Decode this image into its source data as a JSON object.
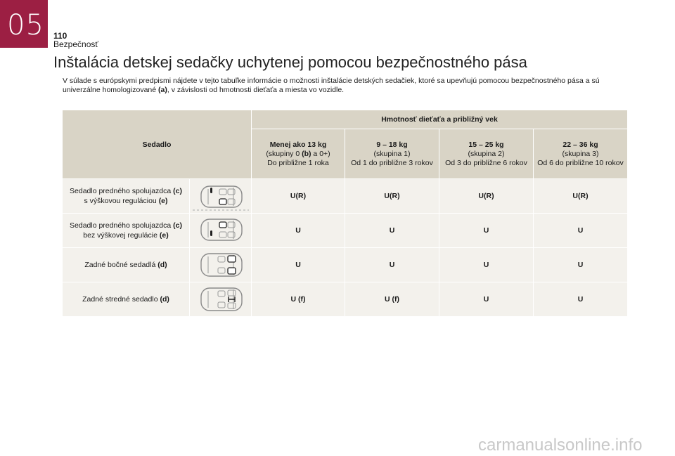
{
  "header": {
    "chapter_number": "05",
    "page_number": "110",
    "section": "Bezpečnosť",
    "chapter_color": "#9c1f43"
  },
  "title": "Inštalácia detskej sedačky uchytenej pomocou bezpečnostného pása",
  "intro": {
    "part1": "V súlade s európskymi predpismi nájdete v tejto tabuľke informácie o možnosti inštalácie detských sedačiek, ktoré sa upevňujú pomocou bezpečnostného pása a sú univerzálne homologizované ",
    "part1_bold": "(a)",
    "part2": ", v závislosti od hmotnosti dieťaťa a miesta vo vozidle."
  },
  "table": {
    "seat_header": "Sedadlo",
    "weight_header": "Hmotnosť dieťaťa a približný vek",
    "columns": [
      {
        "weight": "Menej ako 13 kg",
        "group_pre": "(skupiny 0 ",
        "group_bold": "(b)",
        "group_post": " a 0+)",
        "age": "Do približne 1 roka"
      },
      {
        "weight": "9 – 18 kg",
        "group_pre": "(skupina 1)",
        "group_bold": "",
        "group_post": "",
        "age": "Od 1 do približne 3 rokov"
      },
      {
        "weight": "15 – 25 kg",
        "group_pre": "(skupina 2)",
        "group_bold": "",
        "group_post": "",
        "age": "Od 3 do približne 6 rokov"
      },
      {
        "weight": "22 – 36 kg",
        "group_pre": "(skupina 3)",
        "group_bold": "",
        "group_post": "",
        "age": "Od 6 do približne 10 rokov"
      }
    ],
    "rows": [
      {
        "label_a": "Sedadlo predného spolujazdca ",
        "label_a_bold": "(c)",
        "label_b": "s výškovou reguláciou ",
        "label_b_bold": "(e)",
        "values": [
          "U(R)",
          "U(R)",
          "U(R)",
          "U(R)"
        ]
      },
      {
        "label_a": "Sedadlo predného spolujazdca ",
        "label_a_bold": "(c)",
        "label_b": "bez výškovej regulácie ",
        "label_b_bold": "(e)",
        "values": [
          "U",
          "U",
          "U",
          "U"
        ]
      },
      {
        "label_a": "Zadné bočné sedadlá ",
        "label_a_bold": "(d)",
        "label_b": "",
        "label_b_bold": "",
        "values": [
          "U",
          "U",
          "U",
          "U"
        ]
      },
      {
        "label_a": "Zadné stredné sedadlo ",
        "label_a_bold": "(d)",
        "label_b": "",
        "label_b_bold": "",
        "values": [
          "U (f)",
          "U (f)",
          "U",
          "U"
        ]
      }
    ]
  },
  "watermark": "carmanualsonline.info"
}
